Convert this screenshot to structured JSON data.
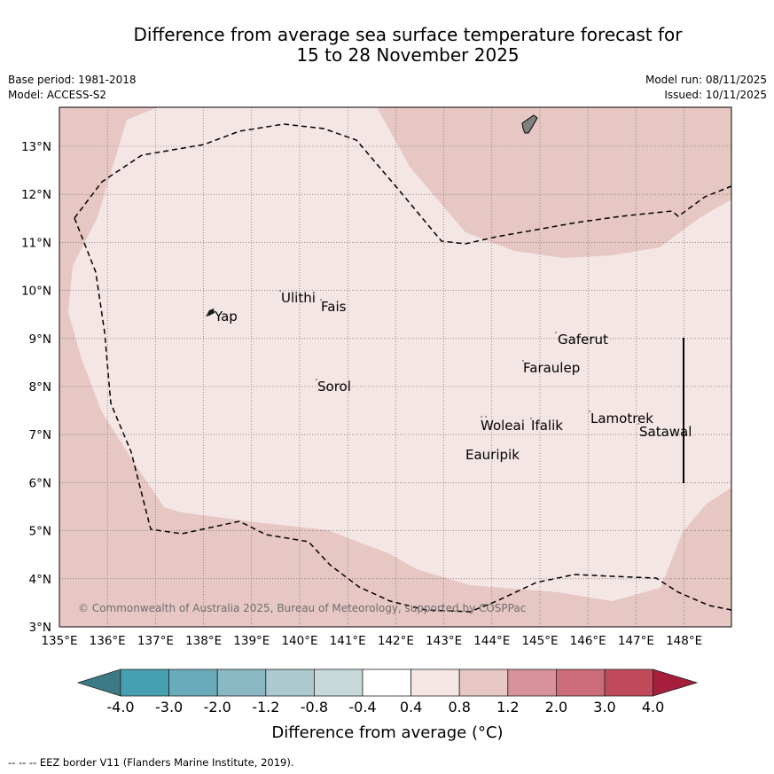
{
  "title": {
    "line1": "Difference from average sea surface temperature forecast for",
    "line2": "15 to 28 November 2025"
  },
  "meta": {
    "base_period": "Base period: 1981-2018",
    "model": "Model: ACCESS-S2",
    "model_run": "Model run: 08/11/2025",
    "issued": "Issued: 10/11/2025"
  },
  "map": {
    "lon_labels": [
      "135°E",
      "136°E",
      "137°E",
      "138°E",
      "139°E",
      "140°E",
      "141°E",
      "142°E",
      "143°E",
      "144°E",
      "145°E",
      "146°E",
      "147°E",
      "148°E"
    ],
    "lat_labels": [
      "13°N",
      "12°N",
      "11°N",
      "10°N",
      "9°N",
      "8°N",
      "7°N",
      "6°N",
      "5°N",
      "4°N",
      "3°N"
    ],
    "places": [
      "Ulithi",
      "Fais",
      "Yap",
      "Gaferut",
      "Faraulep",
      "Sorol",
      "Lamotrek",
      "Woleai",
      "Ifalik",
      "Satawal",
      "Eauripik"
    ],
    "copyright": "© Commonwealth of Australia 2025, Bureau of Meteorology, supported by COSPPac",
    "colors": {
      "light_band": "#f4e6e5",
      "mid_band": "#e7c7c3",
      "land": "#808080",
      "eez": "#000000"
    }
  },
  "colorbar": {
    "ticks": [
      "-4.0",
      "-3.0",
      "-2.0",
      "-1.2",
      "-0.8",
      "-0.4",
      "0.4",
      "0.8",
      "1.2",
      "2.0",
      "3.0",
      "4.0"
    ],
    "colors": [
      "#3d7a85",
      "#46a0b2",
      "#69abbb",
      "#8ab8c3",
      "#abc9ce",
      "#c8d9dc",
      "#ffffff",
      "#f4e6e5",
      "#e7c7c3",
      "#d7929a",
      "#cc6c78",
      "#c04a5a",
      "#a51e3c"
    ],
    "label": "Difference from average (°C)"
  },
  "footer": "--  --  -- EEZ border V11 (Flanders Marine Institute, 2019)."
}
